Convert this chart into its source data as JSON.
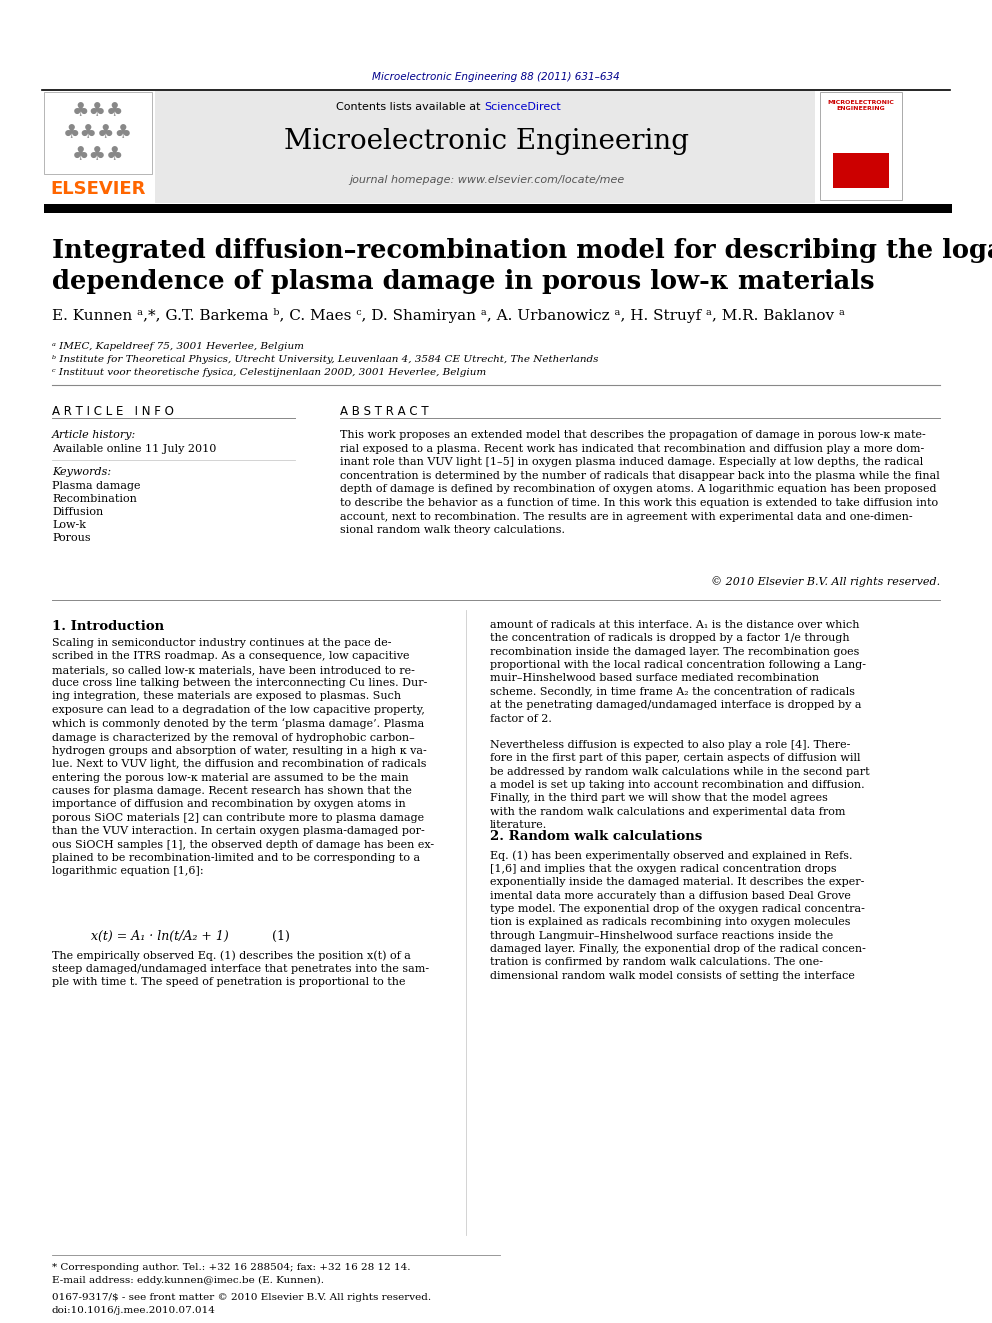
{
  "journal_ref": "Microelectronic Engineering 88 (2011) 631–634",
  "journal_ref_color": "#00008B",
  "contents_text": "Contents lists available at ",
  "sciencedirect_text": "ScienceDirect",
  "sciencedirect_color": "#0000CC",
  "journal_name": "Microelectronic Engineering",
  "journal_homepage": "journal homepage: www.elsevier.com/locate/mee",
  "header_bg": "#E8E8E8",
  "elsevier_color": "#FF6600",
  "title": "Integrated diffusion–recombination model for describing the logarithmic time\ndependence of plasma damage in porous low-κ materials",
  "authors": "E. Kunnen ᵃ,*, G.T. Barkema ᵇ, C. Maes ᶜ, D. Shamiryan ᵃ, A. Urbanowicz ᵃ, H. Struyf ᵃ, M.R. Baklanov ᵃ",
  "affil1": "ᵃ IMEC, Kapeldreef 75, 3001 Heverlee, Belgium",
  "affil2": "ᵇ Institute for Theoretical Physics, Utrecht University, Leuvenlaan 4, 3584 CE Utrecht, The Netherlands",
  "affil3": "ᶜ Instituut voor theoretische fysica, Celestijnenlaan 200D, 3001 Heverlee, Belgium",
  "article_info_label": "A R T I C L E   I N F O",
  "abstract_label": "A B S T R A C T",
  "article_history": "Article history:",
  "available_online": "Available online 11 July 2010",
  "keywords_label": "Keywords:",
  "keywords": [
    "Plasma damage",
    "Recombination",
    "Diffusion",
    "Low-k",
    "Porous"
  ],
  "abstract_text": "This work proposes an extended model that describes the propagation of damage in porous low-κ mate-\nrial exposed to a plasma. Recent work has indicated that recombination and diffusion play a more dom-\ninant role than VUV light [1–5] in oxygen plasma induced damage. Especially at low depths, the radical\nconcentration is determined by the number of radicals that disappear back into the plasma while the final\ndepth of damage is defined by recombination of oxygen atoms. A logarithmic equation has been proposed\nto describe the behavior as a function of time. In this work this equation is extended to take diffusion into\naccount, next to recombination. The results are in agreement with experimental data and one-dimen-\nsional random walk theory calculations.",
  "copyright": "© 2010 Elsevier B.V. All rights reserved.",
  "intro_heading": "1. Introduction",
  "intro_text": "Scaling in semiconductor industry continues at the pace de-\nscribed in the ITRS roadmap. As a consequence, low capacitive\nmaterials, so called low-κ materials, have been introduced to re-\nduce cross line talking between the interconnecting Cu lines. Dur-\ning integration, these materials are exposed to plasmas. Such\nexposure can lead to a degradation of the low capacitive property,\nwhich is commonly denoted by the term ‘plasma damage’. Plasma\ndamage is characterized by the removal of hydrophobic carbon–\nhydrogen groups and absorption of water, resulting in a high κ va-\nlue. Next to VUV light, the diffusion and recombination of radicals\nentering the porous low-κ material are assumed to be the main\ncauses for plasma damage. Recent research has shown that the\nimportance of diffusion and recombination by oxygen atoms in\nporous SiOC materials [2] can contribute more to plasma damage\nthan the VUV interaction. In certain oxygen plasma-damaged por-\nous SiOCH samples [1], the observed depth of damage has been ex-\nplained to be recombination-limited and to be corresponding to a\nlogarithmic equation [1,6]:",
  "equation": "x(t) = A₁ · ln(t/A₂ + 1)",
  "eq_number": "(1)",
  "eq_text": "The empirically observed Eq. (1) describes the position x(t) of a\nsteep damaged/undamaged interface that penetrates into the sam-\nple with time t. The speed of penetration is proportional to the",
  "right_col_text1": "amount of radicals at this interface. A₁ is the distance over which\nthe concentration of radicals is dropped by a factor 1/e through\nrecombination inside the damaged layer. The recombination goes\nproportional with the local radical concentration following a Lang-\nmuir–Hinshelwood based surface mediated recombination\nscheme. Secondly, in time frame A₂ the concentration of radicals\nat the penetrating damaged/undamaged interface is dropped by a\nfactor of 2.",
  "right_col_text2": "Nevertheless diffusion is expected to also play a role [4]. There-\nfore in the first part of this paper, certain aspects of diffusion will\nbe addressed by random walk calculations while in the second part\na model is set up taking into account recombination and diffusion.\nFinally, in the third part we will show that the model agrees\nwith the random walk calculations and experimental data from\nliterature.",
  "rw_heading": "2. Random walk calculations",
  "rw_text": "Eq. (1) has been experimentally observed and explained in Refs.\n[1,6] and implies that the oxygen radical concentration drops\nexponentially inside the damaged material. It describes the exper-\nimental data more accurately than a diffusion based Deal Grove\ntype model. The exponential drop of the oxygen radical concentra-\ntion is explained as radicals recombining into oxygen molecules\nthrough Langmuir–Hinshelwood surface reactions inside the\ndamaged layer. Finally, the exponential drop of the radical concen-\ntration is confirmed by random walk calculations. The one-\ndimensional random walk model consists of setting the interface",
  "footnote_star": "* Corresponding author. Tel.: +32 16 288504; fax: +32 16 28 12 14.",
  "footnote_email": "E-mail address: eddy.kunnen@imec.be (E. Kunnen).",
  "footer_issn": "0167-9317/$ - see front matter © 2010 Elsevier B.V. All rights reserved.",
  "footer_doi": "doi:10.1016/j.mee.2010.07.014"
}
